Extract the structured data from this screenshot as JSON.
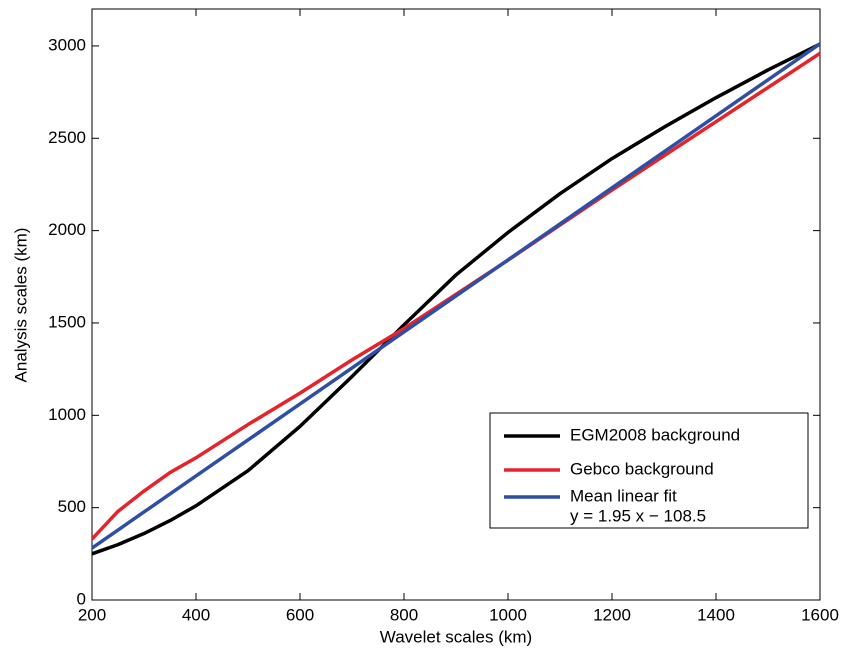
{
  "chart_data": {
    "type": "line",
    "xlabel": "Wavelet scales (km)",
    "ylabel": "Analysis scales (km)",
    "x": [
      200,
      250,
      300,
      350,
      400,
      500,
      600,
      700,
      800,
      900,
      1000,
      1100,
      1200,
      1300,
      1400,
      1500,
      1600
    ],
    "series": [
      {
        "name": "EGM2008 background",
        "color": "#000000",
        "values": [
          250,
          300,
          360,
          430,
          510,
          700,
          940,
          1210,
          1490,
          1760,
          1990,
          2200,
          2390,
          2560,
          2720,
          2870,
          3010
        ]
      },
      {
        "name": "Gebco background",
        "color": "#e3242b",
        "values": [
          330,
          480,
          590,
          690,
          770,
          950,
          1120,
          1300,
          1470,
          1655,
          1840,
          2030,
          2220,
          2405,
          2590,
          2775,
          2960
        ]
      },
      {
        "name": "Mean linear fit",
        "color": "#2f4fa5",
        "values": [
          281.5,
          379,
          476.5,
          574,
          671.5,
          866.5,
          1061.5,
          1256.5,
          1451.5,
          1646.5,
          1841.5,
          2036.5,
          2231.5,
          2426.5,
          2621.5,
          2816.5,
          3011.5
        ]
      }
    ],
    "annotation": "y = 1.95 x − 108.5",
    "xlim": [
      200,
      1600
    ],
    "xticks": [
      200,
      400,
      600,
      800,
      1000,
      1200,
      1400,
      1600
    ],
    "ylim": [
      0,
      3200
    ],
    "yticks": [
      0,
      500,
      1000,
      1500,
      2000,
      2500,
      3000
    ],
    "grid": false,
    "legend": "lower right"
  }
}
